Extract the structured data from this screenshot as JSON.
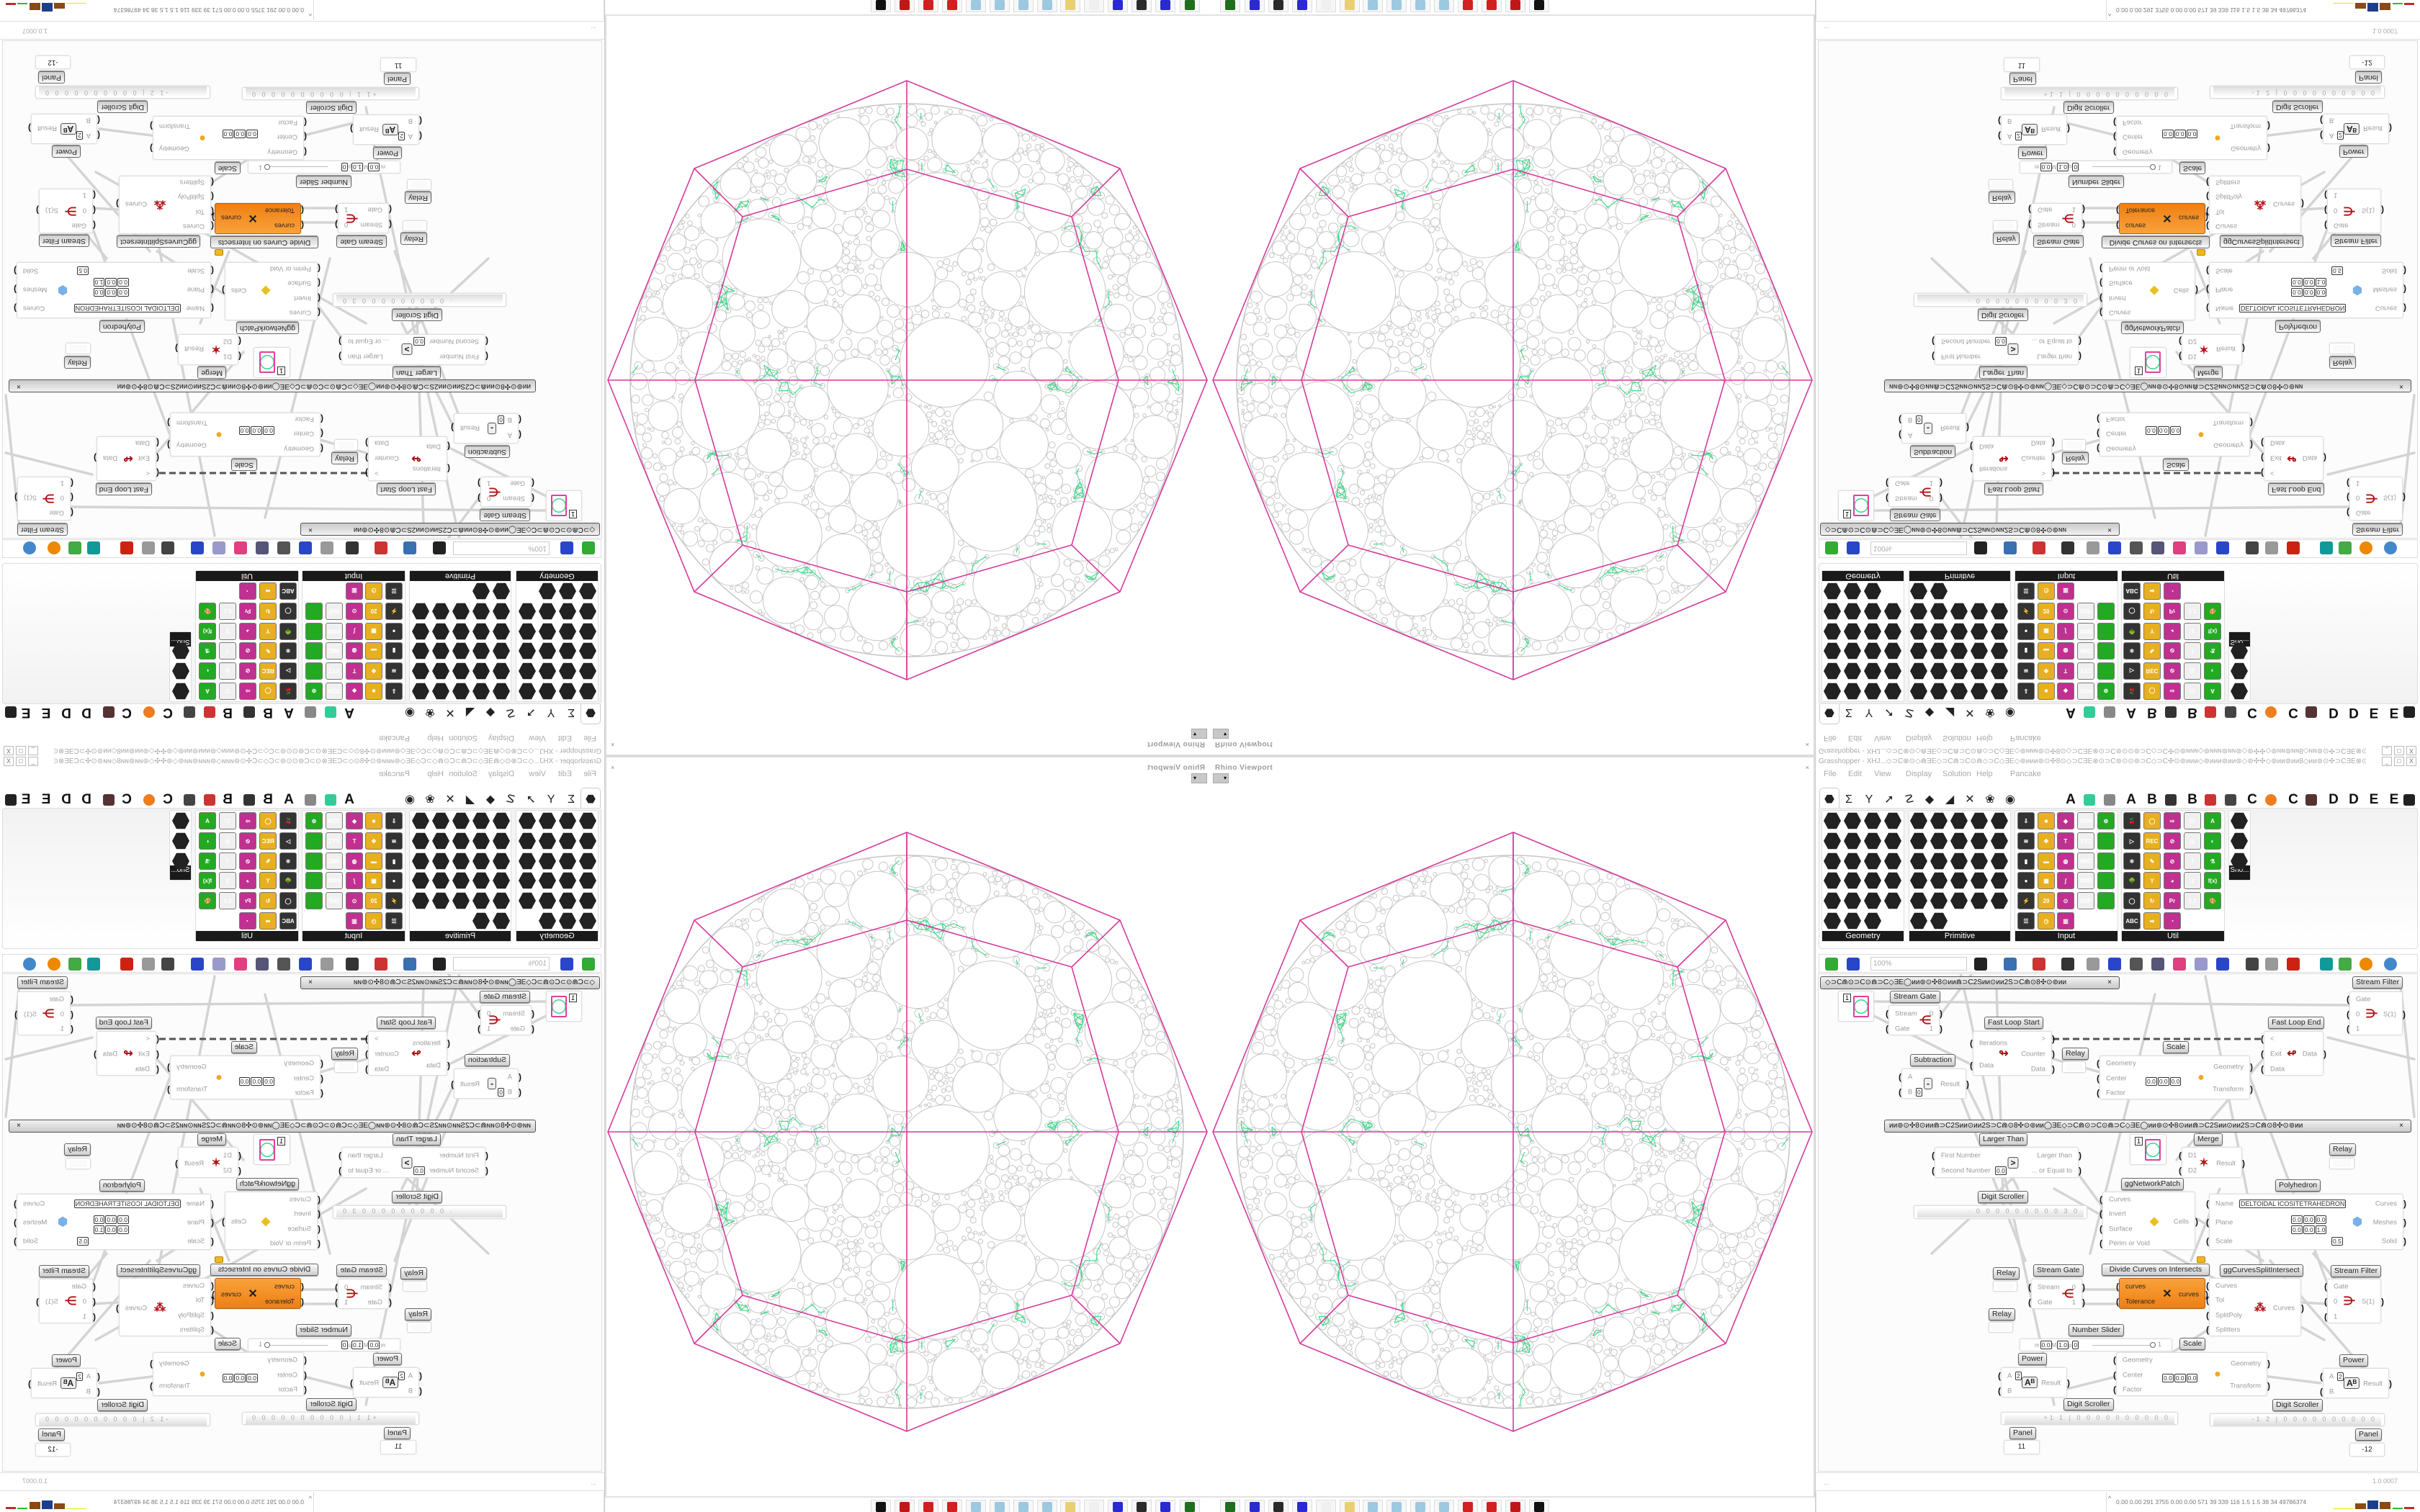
{
  "viewport": {
    "title": "Rhino Viewport",
    "close": "×",
    "dropdown": "▾",
    "toolbar_icons": [
      "save-v8-icon",
      "print-icon",
      "print-icon",
      "save-64-icon",
      "blank-icon",
      "folder-icon",
      "notepad-icon",
      "notepad-icon",
      "notepad-icon",
      "notepad-icon",
      "rhino-red-icon",
      "rhino-red-icon",
      "sketchup-icon",
      "wolf-icon"
    ],
    "colors": {
      "outer_polygon": "#d63a9c",
      "packing": "#c6c6c6",
      "pattern": "#3fd98a"
    }
  },
  "gh": {
    "title": "Grasshopper - XHJ...◇⊃C⊗⊙◇⋒ƎE◇⊃C⋒⊃C⊙⋒◇⊃C◇ƎE◇⊚ᴎᴎᴎ⊚⊙✣8⊙◇⊃CƎE⊗⊙⊃C⊚⊙⊙⊚⊃C◇⊃C✣⊙⊚ᴎᴎᴎ◇⊚ᴎᴎᴎ⊚ᴎᴎ⊚◇⊚✣✣◇⊚ᴎᴎ⊚ᴎᴎ8◇ᴎᴎ⊚⊙✣⊃CƎE⊗⊙⊃C⊚⊙⊚⊃C",
    "window_buttons": [
      "_",
      "□",
      "X"
    ],
    "menu": [
      "File",
      "Edit",
      "View",
      "Display",
      "Solution",
      "Help",
      "Pancake"
    ],
    "tab_icons": [
      "params-hex-icon",
      "maths-sigma-icon",
      "sets-icon",
      "vector-icon",
      "curve-icon",
      "surface-icon",
      "mesh-icon",
      "intersect-icon",
      "transform-icon",
      "display-eye-icon"
    ],
    "tab_icon_glyphs": [
      "⬣",
      "Σ",
      "Y",
      "➚",
      "☡",
      "◆",
      "◢",
      "✕",
      "❀",
      "◉"
    ],
    "tab_letters": [
      "A",
      "A",
      "B",
      "B",
      "C",
      "C",
      "D",
      "D",
      "E",
      "E"
    ],
    "tab_plugin_icons": [
      "gem-icon",
      "flower-icon",
      "mountain-icon",
      "shield-icon",
      "grid-icon",
      "orange-circle-icon",
      "rooster-icon",
      "qr-icon"
    ],
    "panels": [
      {
        "label": "Geometry",
        "icons": 23
      },
      {
        "label": "Primitive",
        "icons": 27
      },
      {
        "label": "Input",
        "icons": 28,
        "glyphs": [
          "⇩",
          "■",
          "◆",
          "3DM",
          "⊚",
          "≋",
          "✥",
          "T",
          "XYZ",
          "",
          "▮",
          "▬",
          "◍",
          "IMG",
          "",
          "●",
          "▦",
          "∫",
          "PDB",
          "",
          "⚡",
          "20",
          "⊙",
          "SHP",
          "",
          "☰",
          "◷",
          "▥",
          "ID"
        ]
      },
      {
        "label": "Util",
        "icons": 28,
        "glyphs": [
          "🍒",
          "◯",
          "⇨",
          "C/",
          "A",
          "▷",
          "REC",
          "⊘",
          "◎",
          "◐",
          "⚛",
          "✎",
          "⊘",
          "7",
          "⚗",
          "🌳",
          "Y",
          "◕",
          "⚷",
          "f(x)",
          "◯",
          "↻",
          "Pr",
          "0.1",
          "🎨",
          "ABC",
          "➡",
          "◔",
          "✕"
        ]
      },
      {
        "label": "Sho...",
        "icons": 3
      }
    ],
    "panel_expand": "+",
    "canvas_toolbar": {
      "zoom": "100%",
      "icons": [
        "new-file-icon",
        "save-icon",
        "zoom-extents-icon",
        "preview-eye-icon",
        "sketch-icon",
        "bake-icon",
        "mail-icon",
        "gha-icon",
        "window-icon",
        "search-icon",
        "package-icon",
        "balloon-icon",
        "dna-icon",
        "shader-icon",
        "ring-icon",
        "red-box-icon",
        "teal-icon",
        "green-icon",
        "sphere-icon",
        "blue-sphere-icon"
      ]
    },
    "canvas": {
      "groups": [
        "◇⊃C⋒⊙⊃C⊙⋒⊃C◇ƎE◯ᴎᴎ⊚⊙✣8⊙ᴎᴎ⋒⊃C2Sᴎᴎ⊙ᴎᴎ2S⊃C⋒⊙8✣⊙⊚ᴎᴎ",
        "ᴎᴎ⊚⊙✣8⊙ᴎᴎ⋒⊃C2Sᴎᴎ⊙ᴎᴎ2S⊃C⋒⊙8✣⊙⊚ᴎᴎ◯ƎE◇⊃C⋒⊙⊃C⊙⋒⊃C◇ƎE◯ᴎᴎ⊚⊙✣8⊙ᴎᴎ⋒⊃C2Sᴎᴎ⊙ᴎᴎ2S⊃C⋒⊙8✣⊙⊚ᴎᴎ"
      ],
      "group_close": "×",
      "components": {
        "panel_a": {
          "value": "1"
        },
        "stream_gate_a": {
          "label": "Stream Gate",
          "inputs": [
            "Stream",
            "Gate"
          ],
          "outputs": [
            "0",
            "1"
          ]
        },
        "stream_filter_a": {
          "label": "Stream Filter",
          "inputs": [
            "Gate",
            "0",
            "1"
          ],
          "outputs": [
            "S(1)"
          ]
        },
        "fast_loop_start": {
          "label": "Fast Loop Start",
          "inputs": [
            "Iterations",
            "Data"
          ],
          "outputs": [
            ">",
            "Counter",
            "Data"
          ]
        },
        "fast_loop_end": {
          "label": "Fast Loop End",
          "inputs": [
            "<",
            "Exit",
            "Data"
          ],
          "outputs": [
            "Data"
          ]
        },
        "relay_a": {
          "label": "Relay"
        },
        "scale_a": {
          "label": "Scale",
          "inputs": [
            "Geometry",
            "Center",
            "Factor"
          ],
          "outputs": [
            "Geometry",
            "Transform"
          ],
          "center": [
            "0.0",
            "0.0",
            "0.0"
          ]
        },
        "subtraction": {
          "label": "Subtraction",
          "inputs": [
            "A",
            "B"
          ],
          "outputs": [
            "Result"
          ],
          "b_value": "0",
          "op": "-"
        },
        "larger_than": {
          "label": "Larger Than",
          "inputs": [
            "First Number",
            "Second Number"
          ],
          "outputs": [
            "Larger than",
            "... or Equal to"
          ],
          "second_value": "0.0",
          "op": ">"
        },
        "panel_b": {
          "value": "1"
        },
        "merge": {
          "label": "Merge",
          "inputs": [
            "D1",
            "D2"
          ],
          "outputs": [
            "Result"
          ]
        },
        "relay_b": {
          "label": "Relay"
        },
        "gg_network_patch": {
          "label": "ggNetworkPatch",
          "inputs": [
            "Curves",
            "Invert",
            "Surface",
            "Perim or Void"
          ],
          "outputs": [
            "Cells"
          ]
        },
        "polyhedron": {
          "label": "Polyhedron",
          "inputs": [
            "Name",
            "Plane",
            "Scale"
          ],
          "outputs": [
            "Curves",
            "Meshes",
            "Solid"
          ],
          "name_value": "DELTOIDAL ICOSITETRAHEDRON",
          "origin": [
            "0.0",
            "0.0",
            "0.0"
          ],
          "z_axis": [
            "0.0",
            "0.0",
            "1.0"
          ],
          "scale_value": "0.5"
        },
        "digit_scroller_a": {
          "label": "Digit Scroller",
          "digits": "· 0 0 0 0 0 0 0 0 0 3 0"
        },
        "relay_c": {
          "label": "Relay"
        },
        "stream_gate_b": {
          "label": "Stream Gate",
          "inputs": [
            "Stream",
            "Gate"
          ],
          "outputs": [
            "0",
            "1"
          ]
        },
        "divide_curves": {
          "label": "Divide Curves on Intersects",
          "inputs": [
            "curves",
            "Tolerance"
          ],
          "outputs": [
            "curves"
          ]
        },
        "gg_curves_split": {
          "label": "ggCurvesSplitIntersect",
          "inputs": [
            "Curves",
            "Tol",
            "SplitPoly",
            "Splitters"
          ],
          "outputs": [
            "Curves"
          ]
        },
        "stream_filter_b": {
          "label": "Stream Filter",
          "inputs": [
            "Gate",
            "0",
            "1"
          ],
          "outputs": [
            "S(1)"
          ]
        },
        "relay_d": {
          "label": "Relay"
        },
        "number_slider": {
          "label": "Number Slider",
          "min": "0.0",
          "max": "1.0",
          "precision": "0",
          "value": "1",
          "value_fraction": 1.0
        },
        "scale_b": {
          "label": "Scale",
          "inputs": [
            "Geometry",
            "Center",
            "Factor"
          ],
          "outputs": [
            "Geometry",
            "Transform"
          ],
          "center": [
            "0.0",
            "0.0",
            "0.0"
          ]
        },
        "power_a": {
          "label": "Power",
          "inputs": [
            "A",
            "B"
          ],
          "outputs": [
            "Result"
          ],
          "a_value": "2",
          "op": "Aᴮ"
        },
        "power_b": {
          "label": "Power",
          "inputs": [
            "A",
            "B"
          ],
          "outputs": [
            "Result"
          ],
          "a_value": "2",
          "op": "Aᴮ"
        },
        "digit_scroller_b": {
          "label": "Digit Scroller",
          "digits": "+1 1 | 0 0 0 0 0 0 0 0 0 0"
        },
        "digit_scroller_c": {
          "label": "Digit Scroller",
          "digits": "-1 2 | 0 0 0 0 0 0 0 0 0 0"
        },
        "panel_c": {
          "label": "Panel",
          "value": "11"
        },
        "panel_d": {
          "label": "Panel",
          "value": "-12"
        }
      }
    },
    "status": {
      "left": "...",
      "version": "1.0.0007"
    },
    "taskbar": {
      "arrow": "^",
      "stats": "0.00 0.00 291 3755 0.00 0.00 571  39  339  116  1.5  1.5  38  34  49786374"
    }
  }
}
